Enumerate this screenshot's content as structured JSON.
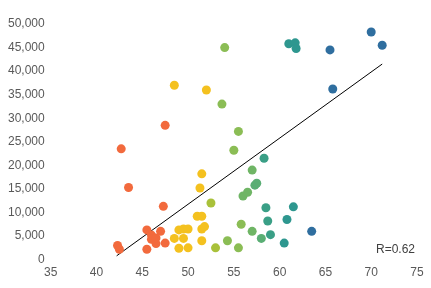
{
  "chart_data": {
    "type": "scatter",
    "grid": false,
    "xlim": [
      35,
      75
    ],
    "xticks": [
      35,
      40,
      45,
      50,
      55,
      60,
      65,
      70,
      75
    ],
    "ylim": [
      0,
      50000
    ],
    "yticks": [
      0,
      {
        "value": 5000,
        "label": "5,000"
      },
      {
        "value": 10000,
        "label": "10,000"
      },
      {
        "value": 15000,
        "label": "15,000"
      },
      {
        "value": 20000,
        "label": "20,000"
      },
      {
        "value": 25000,
        "label": "25,000"
      },
      {
        "value": 30000,
        "label": "30,000"
      },
      {
        "value": 35000,
        "label": "35,000"
      },
      {
        "value": 40000,
        "label": "40,000"
      },
      {
        "value": 45000,
        "label": "45,000"
      },
      {
        "value": 50000,
        "label": "50,000"
      }
    ],
    "annotations": [
      "R=0.62"
    ],
    "series": [
      {
        "type": "scatter",
        "marker": "circle",
        "x": [
          42.3,
          42.5,
          42.7,
          43.5,
          45.5,
          45.5,
          46,
          46,
          46.5,
          46.5,
          47,
          47.3,
          47.5,
          47.5,
          48.5,
          48.5,
          49,
          49,
          49.5,
          49.5,
          50,
          50,
          51,
          51.5,
          51.3,
          51.5,
          51.5,
          51.5,
          51.8,
          52,
          52.5,
          53,
          53.7,
          54,
          54.3,
          55,
          55.5,
          55.5,
          55.8,
          56,
          56.5,
          57,
          57,
          57.3,
          57.5,
          58,
          58.3,
          58.5,
          58.7,
          59,
          60.5,
          60.8,
          61,
          61.5,
          61.7,
          61.8,
          63.5,
          65.5,
          65.8,
          70,
          71.2
        ],
        "values": [
          3000,
          2200,
          23500,
          15300,
          6300,
          2200,
          5200,
          4300,
          3400,
          4600,
          6000,
          11300,
          28500,
          3500,
          37000,
          4500,
          6300,
          2400,
          6500,
          4500,
          6500,
          2500,
          9200,
          9200,
          15200,
          18200,
          4000,
          6500,
          7000,
          36000,
          12000,
          2500,
          33000,
          45000,
          4000,
          23200,
          27200,
          2500,
          7500,
          13500,
          14300,
          19000,
          6000,
          15800,
          16200,
          4500,
          21500,
          11000,
          8200,
          5300,
          3500,
          8500,
          45800,
          11200,
          46000,
          44800,
          6000,
          44500,
          36200,
          48300,
          45500
        ],
        "colors": [
          "#f26a3d",
          "#f26a3d",
          "#f26a3d",
          "#f26a3d",
          "#f26a3d",
          "#f26a3d",
          "#f26a3d",
          "#f26a3d",
          "#f26a3d",
          "#f26a3d",
          "#f26a3d",
          "#f26a3d",
          "#f26a3d",
          "#f26a3d",
          "#f4c11f",
          "#f4c11f",
          "#f4c11f",
          "#f4c11f",
          "#f4c11f",
          "#f4c11f",
          "#f4c11f",
          "#f4c11f",
          "#f4c11f",
          "#f4c11f",
          "#f4c11f",
          "#f4c11f",
          "#f4c11f",
          "#f4c11f",
          "#f4c11f",
          "#f4c11f",
          "#a9c13a",
          "#a9c13a",
          "#8bbd55",
          "#8bbd55",
          "#8bbd55",
          "#8bbd55",
          "#8bbd55",
          "#8bbd55",
          "#8bbd55",
          "#6fb565",
          "#6fb565",
          "#6fb565",
          "#6fb565",
          "#5aae74",
          "#5aae74",
          "#5aae74",
          "#3a9f86",
          "#3a9f86",
          "#3a9f86",
          "#3a9f86",
          "#2e978f",
          "#2e978f",
          "#2e978f",
          "#2e978f",
          "#2e978f",
          "#2e978f",
          "#2f6e9f",
          "#2f6e9f",
          "#2f6e9f",
          "#2f6e9f",
          "#2f6e9f"
        ]
      },
      {
        "type": "line",
        "line_style": "solid",
        "color": "#000000",
        "x": [
          42.2,
          71.2
        ],
        "values": [
          800,
          41500
        ]
      }
    ]
  }
}
